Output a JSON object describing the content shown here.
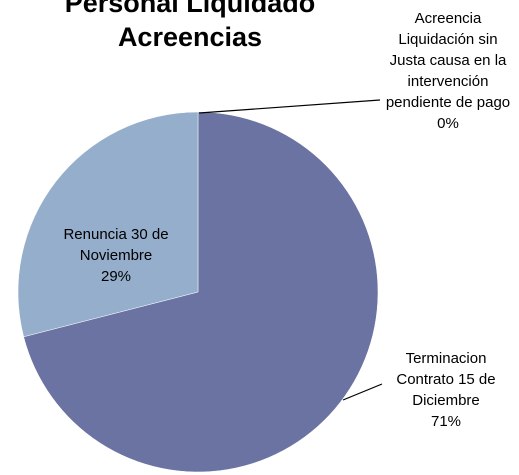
{
  "chart_data": {
    "type": "pie",
    "title": "Personal Liquidado Acreencias",
    "categories": [
      "Acreencia Liquidación sin Justa causa en la intervención pendiente de pago",
      "Terminacion Contrato 15 de Diciembre",
      "Renuncia 30 de Noviembre"
    ],
    "values": [
      0,
      71,
      29
    ],
    "value_labels": [
      "0%",
      "71%",
      "29%"
    ],
    "colors": [
      "#d6cc5c",
      "#6a73a1",
      "#94aecb"
    ]
  }
}
